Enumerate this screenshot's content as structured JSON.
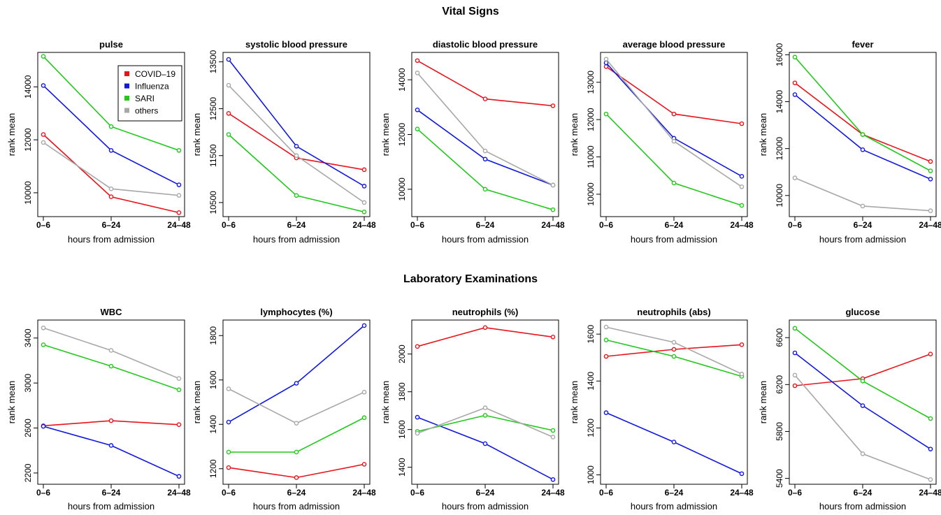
{
  "figure": {
    "section_titles": [
      "Vital Signs",
      "Laboratory Examinations"
    ]
  },
  "chart_data": [
    {
      "type": "line",
      "title": "pulse",
      "xlabel": "hours from admission",
      "ylabel": "rank mean",
      "categories": [
        "0–6",
        "6–24",
        "24–48"
      ],
      "ylim": [
        9100,
        15300
      ],
      "yticks": [
        10000,
        12000,
        14000
      ],
      "ytick_labels": [
        "10000",
        "12000",
        "14000"
      ],
      "legend": {
        "position": "top-right",
        "entries": [
          "COVID–19",
          "Influenza",
          "SARI",
          "others"
        ]
      },
      "series": [
        {
          "name": "COVID–19",
          "color": "#e8141b",
          "values": [
            12200,
            9850,
            9250
          ]
        },
        {
          "name": "Influenza",
          "color": "#1018e0",
          "values": [
            14050,
            11600,
            10300
          ]
        },
        {
          "name": "SARI",
          "color": "#22c81c",
          "values": [
            15150,
            12500,
            11600
          ]
        },
        {
          "name": "others",
          "color": "#a8a8a8",
          "values": [
            11900,
            10150,
            9900
          ]
        }
      ]
    },
    {
      "type": "line",
      "title": "systolic blood pressure",
      "xlabel": "hours from admission",
      "ylabel": "rank mean",
      "categories": [
        "0–6",
        "6–24",
        "24–48"
      ],
      "ylim": [
        10200,
        13700
      ],
      "yticks": [
        10500,
        11500,
        12500,
        13500
      ],
      "ytick_labels": [
        "10500",
        "11500",
        "12500",
        "13500"
      ],
      "series": [
        {
          "name": "COVID–19",
          "color": "#e8141b",
          "values": [
            12400,
            11450,
            11200
          ]
        },
        {
          "name": "Influenza",
          "color": "#1018e0",
          "values": [
            13550,
            11700,
            10850
          ]
        },
        {
          "name": "SARI",
          "color": "#22c81c",
          "values": [
            11950,
            10650,
            10300
          ]
        },
        {
          "name": "others",
          "color": "#a8a8a8",
          "values": [
            13000,
            11500,
            10500
          ]
        }
      ]
    },
    {
      "type": "line",
      "title": "diastolic blood pressure",
      "xlabel": "hours from admission",
      "ylabel": "rank mean",
      "categories": [
        "0–6",
        "6–24",
        "24–48"
      ],
      "ylim": [
        9000,
        15000
      ],
      "yticks": [
        10000,
        12000,
        14000
      ],
      "ytick_labels": [
        "10000",
        "12000",
        "14000"
      ],
      "series": [
        {
          "name": "COVID–19",
          "color": "#e8141b",
          "values": [
            14700,
            13300,
            13050
          ]
        },
        {
          "name": "Influenza",
          "color": "#1018e0",
          "values": [
            12900,
            11100,
            10150
          ]
        },
        {
          "name": "SARI",
          "color": "#22c81c",
          "values": [
            12200,
            10000,
            9250
          ]
        },
        {
          "name": "others",
          "color": "#a8a8a8",
          "values": [
            14250,
            11400,
            10150
          ]
        }
      ]
    },
    {
      "type": "line",
      "title": "average blood pressure",
      "xlabel": "hours from admission",
      "ylabel": "rank mean",
      "categories": [
        "0–6",
        "6–24",
        "24–48"
      ],
      "ylim": [
        9400,
        13800
      ],
      "yticks": [
        10000,
        11000,
        12000,
        13000
      ],
      "ytick_labels": [
        "10000",
        "11000",
        "12000",
        "13000"
      ],
      "series": [
        {
          "name": "COVID–19",
          "color": "#e8141b",
          "values": [
            13420,
            12150,
            11890
          ]
        },
        {
          "name": "Influenza",
          "color": "#1018e0",
          "values": [
            13520,
            11500,
            10480
          ]
        },
        {
          "name": "SARI",
          "color": "#22c81c",
          "values": [
            12150,
            10300,
            9700
          ]
        },
        {
          "name": "others",
          "color": "#a8a8a8",
          "values": [
            13620,
            11420,
            10200
          ]
        }
      ]
    },
    {
      "type": "line",
      "title": "fever",
      "xlabel": "hours from admission",
      "ylabel": "rank mean",
      "categories": [
        "0–6",
        "6–24",
        "24–48"
      ],
      "ylim": [
        9100,
        16100
      ],
      "yticks": [
        10000,
        12000,
        14000,
        16000
      ],
      "ytick_labels": [
        "10000",
        "12000",
        "14000",
        "16000"
      ],
      "series": [
        {
          "name": "COVID–19",
          "color": "#e8141b",
          "values": [
            14800,
            12600,
            11450
          ]
        },
        {
          "name": "Influenza",
          "color": "#1018e0",
          "values": [
            14300,
            11950,
            10700
          ]
        },
        {
          "name": "SARI",
          "color": "#22c81c",
          "values": [
            15900,
            12600,
            11050
          ]
        },
        {
          "name": "others",
          "color": "#a8a8a8",
          "values": [
            10750,
            9550,
            9350
          ]
        }
      ]
    },
    {
      "type": "line",
      "title": "WBC",
      "xlabel": "hours from admission",
      "ylabel": "rank mean",
      "categories": [
        "0–6",
        "6–24",
        "24–48"
      ],
      "ylim": [
        2100,
        3560
      ],
      "yticks": [
        2200,
        2600,
        3000,
        3400
      ],
      "ytick_labels": [
        "2200",
        "2600",
        "3000",
        "3400"
      ],
      "series": [
        {
          "name": "COVID–19",
          "color": "#e8141b",
          "values": [
            2620,
            2665,
            2630
          ]
        },
        {
          "name": "Influenza",
          "color": "#1018e0",
          "values": [
            2615,
            2445,
            2170
          ]
        },
        {
          "name": "SARI",
          "color": "#22c81c",
          "values": [
            3340,
            3150,
            2940
          ]
        },
        {
          "name": "others",
          "color": "#a8a8a8",
          "values": [
            3490,
            3290,
            3040
          ]
        }
      ]
    },
    {
      "type": "line",
      "title": "lymphocytes (%)",
      "xlabel": "hours from admission",
      "ylabel": "rank mean",
      "categories": [
        "0–6",
        "6–24",
        "24–48"
      ],
      "ylim": [
        1130,
        1870
      ],
      "yticks": [
        1200,
        1400,
        1600,
        1800
      ],
      "ytick_labels": [
        "1200",
        "1400",
        "1600",
        "1800"
      ],
      "series": [
        {
          "name": "COVID–19",
          "color": "#e8141b",
          "values": [
            1205,
            1160,
            1220
          ]
        },
        {
          "name": "Influenza",
          "color": "#1018e0",
          "values": [
            1410,
            1585,
            1845
          ]
        },
        {
          "name": "SARI",
          "color": "#22c81c",
          "values": [
            1275,
            1275,
            1430
          ]
        },
        {
          "name": "others",
          "color": "#a8a8a8",
          "values": [
            1560,
            1405,
            1545
          ]
        }
      ]
    },
    {
      "type": "line",
      "title": "neutrophils (%)",
      "xlabel": "hours from admission",
      "ylabel": "rank mean",
      "categories": [
        "0–6",
        "6–24",
        "24–48"
      ],
      "ylim": [
        1310,
        2180
      ],
      "yticks": [
        1400,
        1600,
        1800,
        2000
      ],
      "ytick_labels": [
        "1400",
        "1600",
        "1800",
        "2000"
      ],
      "series": [
        {
          "name": "COVID–19",
          "color": "#e8141b",
          "values": [
            2040,
            2140,
            2090
          ]
        },
        {
          "name": "Influenza",
          "color": "#1018e0",
          "values": [
            1665,
            1525,
            1335
          ]
        },
        {
          "name": "SARI",
          "color": "#22c81c",
          "values": [
            1590,
            1675,
            1595
          ]
        },
        {
          "name": "others",
          "color": "#a8a8a8",
          "values": [
            1580,
            1715,
            1560
          ]
        }
      ]
    },
    {
      "type": "line",
      "title": "neutrophils (abs)",
      "xlabel": "hours from admission",
      "ylabel": "rank mean",
      "categories": [
        "0–6",
        "6–24",
        "24–48"
      ],
      "ylim": [
        960,
        1660
      ],
      "yticks": [
        1000,
        1200,
        1400,
        1600
      ],
      "ytick_labels": [
        "1000",
        "1200",
        "1400",
        "1600"
      ],
      "series": [
        {
          "name": "COVID–19",
          "color": "#e8141b",
          "values": [
            1505,
            1535,
            1555
          ]
        },
        {
          "name": "Influenza",
          "color": "#1018e0",
          "values": [
            1265,
            1140,
            1005
          ]
        },
        {
          "name": "SARI",
          "color": "#22c81c",
          "values": [
            1575,
            1505,
            1420
          ]
        },
        {
          "name": "others",
          "color": "#a8a8a8",
          "values": [
            1630,
            1565,
            1430
          ]
        }
      ]
    },
    {
      "type": "line",
      "title": "glucose",
      "xlabel": "hours from admission",
      "ylabel": "rank mean",
      "categories": [
        "0–6",
        "6–24",
        "24–48"
      ],
      "ylim": [
        5350,
        6750
      ],
      "yticks": [
        5400,
        5800,
        6200,
        6600
      ],
      "ytick_labels": [
        "5400",
        "5800",
        "6200",
        "6600"
      ],
      "series": [
        {
          "name": "COVID–19",
          "color": "#e8141b",
          "values": [
            6190,
            6250,
            6460
          ]
        },
        {
          "name": "Influenza",
          "color": "#1018e0",
          "values": [
            6470,
            6020,
            5650
          ]
        },
        {
          "name": "SARI",
          "color": "#22c81c",
          "values": [
            6680,
            6230,
            5910
          ]
        },
        {
          "name": "others",
          "color": "#a8a8a8",
          "values": [
            6280,
            5610,
            5390
          ]
        }
      ]
    }
  ]
}
